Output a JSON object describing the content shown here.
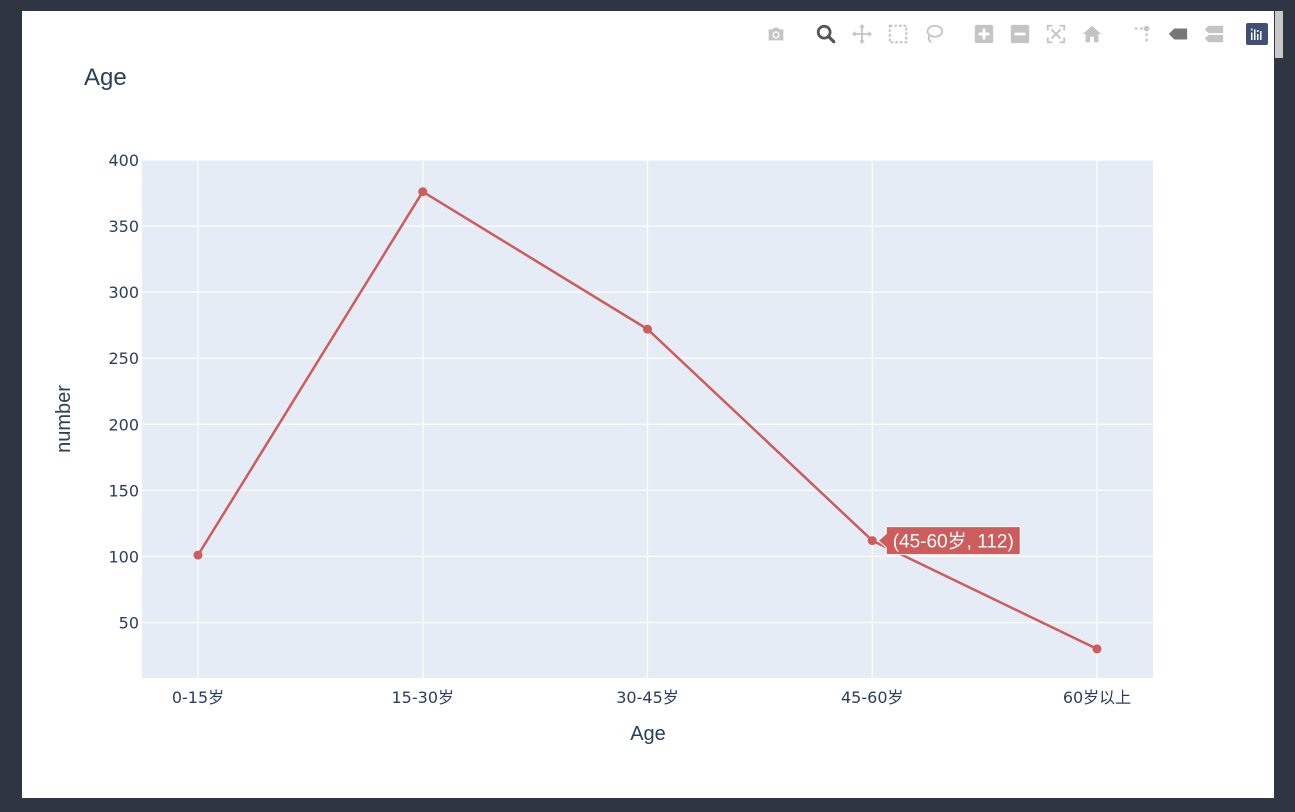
{
  "chart_data": {
    "type": "line",
    "title": "Age",
    "xlabel": "Age",
    "ylabel": "number",
    "categories": [
      "0-15岁",
      "15-30岁",
      "30-45岁",
      "45-60岁",
      "60岁以上"
    ],
    "series": [
      {
        "values": [
          101,
          376,
          272,
          112,
          30
        ]
      }
    ],
    "y_ticks": [
      "50",
      "100",
      "150",
      "200",
      "250",
      "300",
      "350",
      "400"
    ],
    "ylim": [
      8,
      400
    ],
    "grid": true,
    "hover_label": {
      "text": "(45-60岁, 112)",
      "category_index": 3
    },
    "colors": {
      "line": "#cd5c5c",
      "plot_bg": "#e5ecf6",
      "grid": "#ffffff",
      "text": "#2a3f5f"
    }
  },
  "modebar": {
    "icons": [
      "camera-icon",
      "zoom-icon",
      "pan-icon",
      "box-select-icon",
      "lasso-icon",
      "zoom-in-icon",
      "zoom-out-icon",
      "autoscale-icon",
      "reset-axes-icon",
      "spike-lines-icon",
      "hover-closest-icon",
      "hover-compare-icon",
      "plotly-logo-icon"
    ]
  }
}
